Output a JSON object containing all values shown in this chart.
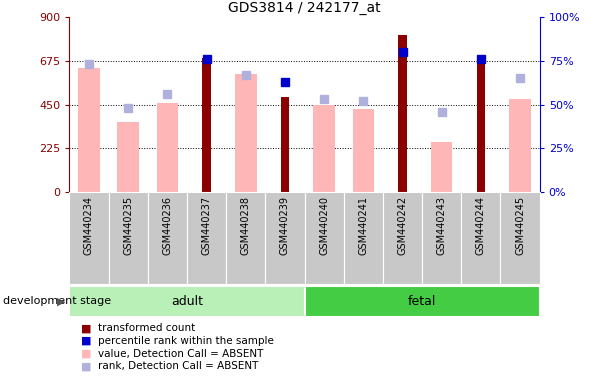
{
  "title": "GDS3814 / 242177_at",
  "categories": [
    "GSM440234",
    "GSM440235",
    "GSM440236",
    "GSM440237",
    "GSM440238",
    "GSM440239",
    "GSM440240",
    "GSM440241",
    "GSM440242",
    "GSM440243",
    "GSM440244",
    "GSM440245"
  ],
  "transformed_count": [
    null,
    null,
    null,
    690,
    null,
    490,
    null,
    null,
    810,
    null,
    690,
    null
  ],
  "percentile_rank": [
    null,
    null,
    null,
    76,
    null,
    63,
    null,
    null,
    80,
    null,
    76,
    null
  ],
  "absent_value": [
    640,
    360,
    460,
    null,
    610,
    null,
    450,
    430,
    null,
    260,
    null,
    480
  ],
  "absent_rank": [
    73,
    48,
    56,
    null,
    67,
    null,
    53,
    52,
    null,
    46,
    null,
    65
  ],
  "ylim_left": [
    0,
    900
  ],
  "ylim_right": [
    0,
    100
  ],
  "yticks_left": [
    0,
    225,
    450,
    675,
    900
  ],
  "yticks_right": [
    0,
    25,
    50,
    75,
    100
  ],
  "dark_red": "#8b0000",
  "dark_blue": "#0000cc",
  "light_pink": "#ffb6b6",
  "light_blue": "#b0b0dd",
  "adult_color": "#b8f0b8",
  "fetal_color": "#44cc44",
  "bg_gray": "#c8c8c8",
  "legend_labels": [
    "transformed count",
    "percentile rank within the sample",
    "value, Detection Call = ABSENT",
    "rank, Detection Call = ABSENT"
  ],
  "legend_colors": [
    "#8b0000",
    "#0000cc",
    "#ffb6b6",
    "#b0b0dd"
  ]
}
